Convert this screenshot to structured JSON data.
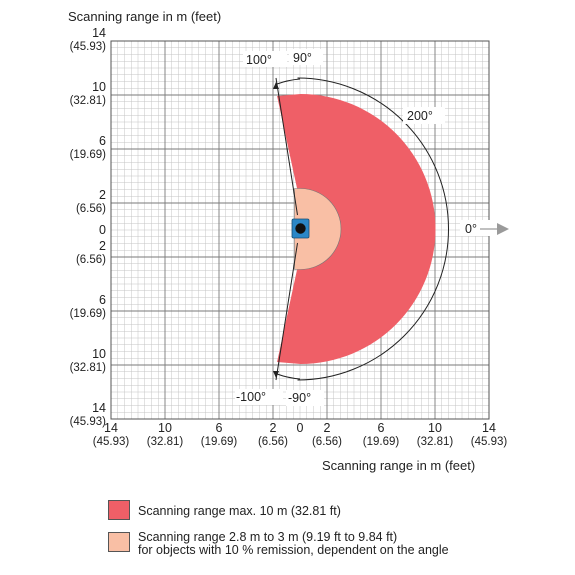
{
  "y_axis_title": "Scanning range in m (feet)",
  "x_axis_title": "Scanning range in m (feet)",
  "y_ticks": [
    {
      "m": "14",
      "ft": "(45.93)"
    },
    {
      "m": "10",
      "ft": "(32.81)"
    },
    {
      "m": "6",
      "ft": "(19.69)"
    },
    {
      "m": "2",
      "ft": "(6.56)"
    },
    {
      "m": "0",
      "ft": ""
    },
    {
      "m": "2",
      "ft": "(6.56)"
    },
    {
      "m": "6",
      "ft": "(19.69)"
    },
    {
      "m": "10",
      "ft": "(32.81)"
    },
    {
      "m": "14",
      "ft": "(45.93)"
    }
  ],
  "x_ticks": [
    {
      "m": "14",
      "ft": "(45.93)"
    },
    {
      "m": "10",
      "ft": "(32.81)"
    },
    {
      "m": "6",
      "ft": "(19.69)"
    },
    {
      "m": "2",
      "ft": "(6.56)"
    },
    {
      "m": "0",
      "ft": ""
    },
    {
      "m": "2",
      "ft": "(6.56)"
    },
    {
      "m": "6",
      "ft": "(19.69)"
    },
    {
      "m": "10",
      "ft": "(32.81)"
    },
    {
      "m": "14",
      "ft": "(45.93)"
    }
  ],
  "angle_labels": {
    "top_100": "100°",
    "top_90": "90°",
    "sweep": "200°",
    "zero": "0°",
    "bottom_100": "-100°",
    "bottom_90": "-90°"
  },
  "ranges": {
    "max_radius_m": 10,
    "min_radius_m": 3,
    "field_angle_deg": 200
  },
  "colors": {
    "max_range": "#ef5f67",
    "remission_range": "#f9bfa5",
    "grid_major": "#7a7a7a",
    "grid_minor": "#c4c4c4",
    "sensor_body": "#2b87c7",
    "arrow": "#9a9a9a"
  },
  "legend": {
    "max_label": "Scanning range max. 10 m (32.81 ft)",
    "remission_line1": "Scanning range 2.8 m to 3 m (9.19 ft to 9.84 ft)",
    "remission_line2": "for objects with 10 % remission, dependent on the angle"
  }
}
